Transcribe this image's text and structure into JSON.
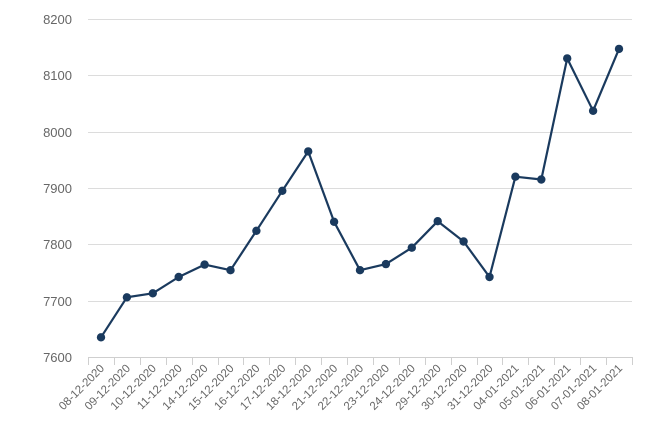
{
  "chart_data": {
    "type": "line",
    "title": "",
    "xlabel": "",
    "ylabel": "",
    "categories": [
      "08-12-2020",
      "09-12-2020",
      "10-12-2020",
      "11-12-2020",
      "14-12-2020",
      "15-12-2020",
      "16-12-2020",
      "17-12-2020",
      "18-12-2020",
      "21-12-2020",
      "22-12-2020",
      "23-12-2020",
      "24-12-2020",
      "29-12-2020",
      "30-12-2020",
      "31-12-2020",
      "04-01-2021",
      "05-01-2021",
      "06-01-2021",
      "07-01-2021",
      "08-01-2021"
    ],
    "series": [
      {
        "values": [
          7635,
          7706,
          7713,
          7742,
          7764,
          7754,
          7824,
          7895,
          7965,
          7840,
          7754,
          7765,
          7794,
          7841,
          7805,
          7742,
          7920,
          7915,
          8130,
          8037,
          8147
        ]
      }
    ],
    "ylim": [
      7600,
      8200
    ],
    "yticks": [
      7600,
      7700,
      7800,
      7900,
      8000,
      8100,
      8200
    ],
    "grid": true,
    "legend": "none",
    "colors": {
      "line": "#1a3a5e",
      "marker": "#1a3a5e",
      "grid": "#dcdcdc"
    }
  }
}
